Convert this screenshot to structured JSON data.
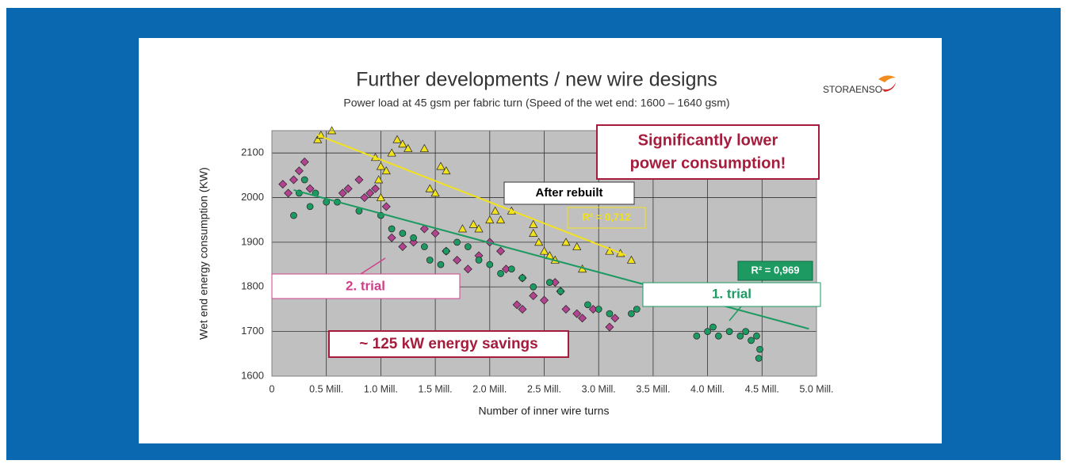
{
  "chart_data": {
    "type": "scatter",
    "title": "Further developments / new wire designs",
    "subtitle": "Power load at 45 gsm per fabric turn (Speed of the wet end: 1600 – 1640 gsm)",
    "logo": "STORAENSO",
    "x_label": "Number of inner wire turns",
    "y_label": "Wet end energy consumption (KW)",
    "xlim": [
      0,
      5000000
    ],
    "ylim": [
      1600,
      2150
    ],
    "xticks": [
      0,
      {
        "value": 500000,
        "label": "0.5 Mill."
      },
      {
        "value": 1000000,
        "label": "1.0 Mill."
      },
      {
        "value": 1500000,
        "label": "1.5 Mill."
      },
      {
        "value": 2000000,
        "label": "2.0 Mill."
      },
      {
        "value": 2500000,
        "label": "2.5 Mill."
      },
      {
        "value": 3000000,
        "label": "3.0 Mill."
      },
      {
        "value": 3500000,
        "label": "3.5 Mill."
      },
      {
        "value": 4000000,
        "label": "4.0 Mill."
      },
      {
        "value": 4500000,
        "label": "4.5 Mill."
      },
      {
        "value": 5000000,
        "label": "5.0 Mill."
      }
    ],
    "yticks": [
      1600,
      1700,
      1800,
      1900,
      2000,
      2100
    ],
    "grid": true,
    "series": [
      {
        "marker": "triangle",
        "color": "#f2e21c",
        "x": [
          420000,
          450000,
          550000,
          950000,
          1000000,
          1050000,
          1100000,
          1150000,
          1200000,
          1250000,
          980000,
          1000000,
          1400000,
          1450000,
          1500000,
          1550000,
          1600000,
          1850000,
          1900000,
          2050000,
          2100000,
          2200000,
          2400000,
          2450000,
          2500000,
          2550000,
          2600000,
          2700000,
          2800000,
          2850000,
          3100000,
          3200000,
          3300000,
          2400000,
          2000000,
          1750000
        ],
        "y": [
          2130,
          2140,
          2150,
          2090,
          2070,
          2060,
          2100,
          2130,
          2120,
          2110,
          2040,
          2000,
          2110,
          2020,
          2010,
          2070,
          2060,
          1940,
          1930,
          1970,
          1950,
          1970,
          1920,
          1900,
          1880,
          1870,
          1860,
          1900,
          1890,
          1840,
          1880,
          1875,
          1860,
          1940,
          1950,
          1930
        ]
      },
      {
        "marker": "diamond",
        "color": "#b2448f",
        "x": [
          100000,
          150000,
          200000,
          250000,
          300000,
          350000,
          650000,
          700000,
          800000,
          850000,
          900000,
          950000,
          1050000,
          1100000,
          1200000,
          1300000,
          1400000,
          1500000,
          1600000,
          1700000,
          1800000,
          1900000,
          2000000,
          2100000,
          2150000,
          2300000,
          2250000,
          2400000,
          2500000,
          2600000,
          2650000,
          2700000,
          2800000,
          2850000,
          2950000,
          3100000,
          3150000,
          2300000
        ],
        "y": [
          2030,
          2010,
          2040,
          2060,
          2080,
          2020,
          2010,
          2020,
          2040,
          2000,
          2010,
          2020,
          1980,
          1910,
          1890,
          1900,
          1930,
          1920,
          1880,
          1860,
          1840,
          1870,
          1900,
          1880,
          1840,
          1820,
          1760,
          1780,
          1770,
          1810,
          1790,
          1750,
          1740,
          1730,
          1750,
          1710,
          1730,
          1750
        ]
      },
      {
        "marker": "circle",
        "color": "#1c9a62",
        "x": [
          250000,
          300000,
          350000,
          200000,
          400000,
          500000,
          600000,
          800000,
          1000000,
          1100000,
          1200000,
          1300000,
          1400000,
          1450000,
          1550000,
          1600000,
          1700000,
          1800000,
          1900000,
          2000000,
          2100000,
          2200000,
          2300000,
          2400000,
          2550000,
          2650000,
          2900000,
          3000000,
          3100000,
          3300000,
          3350000,
          3900000,
          4000000,
          4050000,
          4100000,
          4200000,
          4300000,
          4350000,
          4400000,
          4450000,
          4470000,
          4480000
        ],
        "y": [
          2010,
          2040,
          1980,
          1960,
          2010,
          1990,
          1990,
          1970,
          1960,
          1930,
          1920,
          1910,
          1890,
          1860,
          1850,
          1880,
          1900,
          1890,
          1860,
          1850,
          1830,
          1840,
          1820,
          1800,
          1810,
          1790,
          1760,
          1750,
          1740,
          1740,
          1750,
          1690,
          1700,
          1710,
          1690,
          1700,
          1690,
          1700,
          1680,
          1690,
          1640,
          1660
        ]
      }
    ],
    "trendlines": [
      {
        "color": "#f2e21c",
        "x": [
          410000,
          3250000
        ],
        "y": [
          2141,
          1871
        ]
      },
      {
        "color": "#1c9a62",
        "x": [
          200000,
          4930000
        ],
        "y": [
          2017,
          1706
        ]
      }
    ],
    "annotations": {
      "highlight": [
        "Significantly lower",
        "power consumption!"
      ],
      "after_rebuilt": "After rebuilt",
      "r2_yellow": "R² = 0,712",
      "r2_green": "R² = 0,969",
      "trial2": "2. trial",
      "trial1": "1. trial",
      "savings": "~ 125 kW energy savings"
    }
  }
}
